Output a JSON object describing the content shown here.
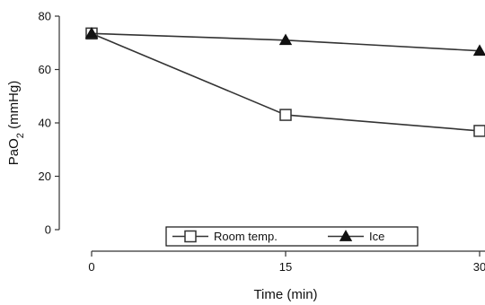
{
  "chart_data": {
    "type": "line",
    "xlabel": "Time (min)",
    "ylabel": {
      "prefix": "PaO",
      "subscript": "2",
      "suffix": " (mmHg)"
    },
    "x": [
      0,
      15,
      30
    ],
    "xticks": [
      "0",
      "15",
      "30"
    ],
    "yticks": [
      "0",
      "20",
      "40",
      "60",
      "80"
    ],
    "xlim": [
      0,
      30
    ],
    "ylim": [
      0,
      80
    ],
    "grid": false,
    "legend_position": "bottom",
    "series": [
      {
        "name": "Room temp.",
        "marker": "open-square",
        "color": "#333333",
        "values": [
          73.5,
          43,
          37
        ]
      },
      {
        "name": "Ice",
        "marker": "filled-triangle",
        "color": "#333333",
        "values": [
          73.5,
          71,
          67
        ]
      }
    ]
  }
}
